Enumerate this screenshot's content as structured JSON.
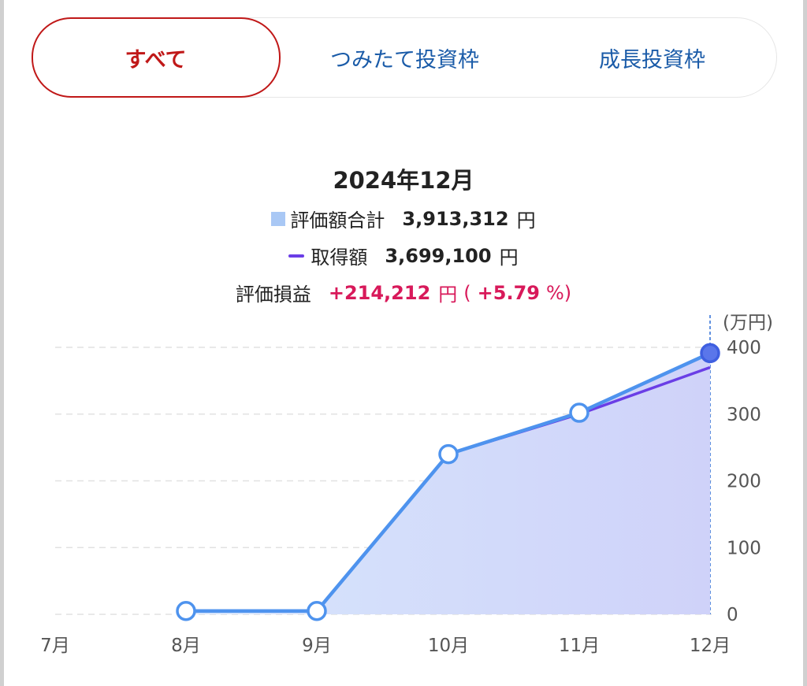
{
  "tabs": [
    {
      "label": "すべて",
      "active": true
    },
    {
      "label": "つみたて投資枠",
      "active": false
    },
    {
      "label": "成長投資枠",
      "active": false
    }
  ],
  "summary": {
    "period": "2024年12月",
    "valuation_label": "評価額合計",
    "valuation_value": "3,913,312",
    "acquisition_label": "取得額",
    "acquisition_value": "3,699,100",
    "unit": "円",
    "pl_label": "評価損益",
    "pl_value": "+214,212",
    "pl_paren_open": "(",
    "pl_percent": "+5.79",
    "pl_percent_unit": "%)"
  },
  "colors": {
    "accent": "#c01818",
    "tab_text": "#1a5ba8",
    "valuation": "#4e93ee",
    "acquisition": "#6a3ee6",
    "profit": "#d8195a"
  },
  "chart_data": {
    "type": "area",
    "categories": [
      "7月",
      "8月",
      "9月",
      "10月",
      "11月",
      "12月"
    ],
    "y_unit_label": "(万円)",
    "ylim": [
      0,
      400
    ],
    "yticks": [
      0,
      100,
      200,
      300,
      400
    ],
    "grid": true,
    "series": [
      {
        "name": "評価額合計",
        "values": [
          null,
          5,
          5,
          240,
          302,
          391.3312
        ],
        "style": "area+markers"
      },
      {
        "name": "取得額",
        "values": [
          null,
          5,
          5,
          240,
          300,
          369.91
        ],
        "style": "line"
      }
    ]
  }
}
